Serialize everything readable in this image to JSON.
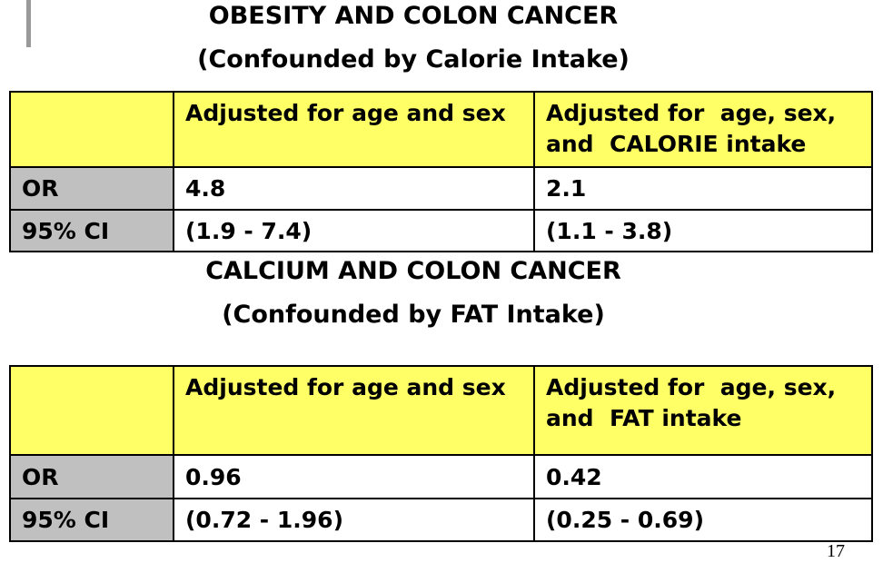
{
  "sections": [
    {
      "title": "OBESITY AND COLON CANCER",
      "subtitle": "(Confounded by Calorie Intake)",
      "table": {
        "header": [
          [
            "Adjusted for age and sex"
          ],
          [
            "Adjusted for  age, sex,",
            "and  CALORIE intake"
          ]
        ],
        "rows": [
          {
            "label": "OR",
            "cells": [
              "4.8",
              "2.1"
            ]
          },
          {
            "label": "95% CI",
            "cells": [
              "(1.9 - 7.4)",
              "(1.1 - 3.8)"
            ]
          }
        ]
      }
    },
    {
      "title": "CALCIUM AND COLON CANCER",
      "subtitle": "(Confounded by FAT Intake)",
      "table": {
        "header": [
          [
            "Adjusted for age and sex"
          ],
          [
            "Adjusted for  age, sex,",
            "and  FAT intake"
          ]
        ],
        "rows": [
          {
            "label": "OR",
            "cells": [
              "0.96",
              "0.42"
            ]
          },
          {
            "label": "95% CI",
            "cells": [
              "(0.72 - 1.96)",
              "(0.25 - 0.69)"
            ]
          }
        ]
      }
    }
  ],
  "page_number": "17"
}
